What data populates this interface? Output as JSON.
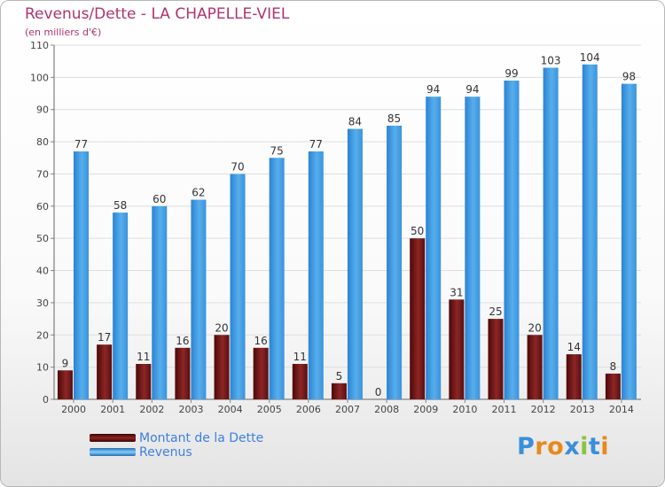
{
  "header": {
    "title": "Revenus/Dette - LA CHAPELLE-VIEL",
    "subtitle": "(en milliers d'€)"
  },
  "legend": {
    "items": [
      {
        "label": "Montant de la Dette",
        "color": "#7a1515"
      },
      {
        "label": "Revenus",
        "color": "#4a9ee0"
      }
    ]
  },
  "logo": {
    "text": "Proxiti",
    "letter_colors": [
      "#3a8fd8",
      "#e8891c",
      "#e8891c",
      "#3a8fd8",
      "#8ac43c",
      "#3a8fd8",
      "#e8891c"
    ]
  },
  "chart_data": {
    "type": "bar",
    "title": "Revenus/Dette - LA CHAPELLE-VIEL",
    "subtitle": "(en milliers d'€)",
    "categories": [
      "2000",
      "2001",
      "2002",
      "2003",
      "2004",
      "2005",
      "2006",
      "2007",
      "2008",
      "2009",
      "2010",
      "2011",
      "2012",
      "2013",
      "2014"
    ],
    "series": [
      {
        "name": "Montant de la Dette",
        "color": "#7a1515",
        "values": [
          9,
          17,
          11,
          16,
          20,
          16,
          11,
          5,
          0,
          50,
          31,
          25,
          20,
          14,
          8
        ]
      },
      {
        "name": "Revenus",
        "color": "#4a9ee0",
        "values": [
          77,
          58,
          60,
          62,
          70,
          75,
          77,
          84,
          85,
          94,
          94,
          99,
          103,
          104,
          98
        ]
      }
    ],
    "ylim": [
      0,
      110
    ],
    "yticks": [
      0,
      10,
      20,
      30,
      40,
      50,
      60,
      70,
      80,
      90,
      100,
      110
    ],
    "grid": true,
    "legend_position": "bottom-left"
  }
}
